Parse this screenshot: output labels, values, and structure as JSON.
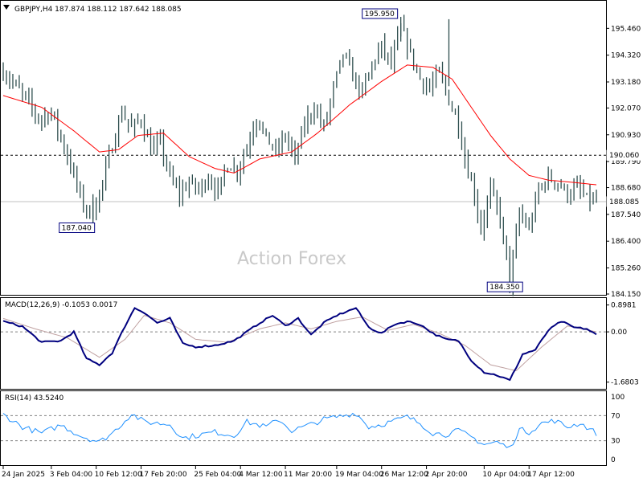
{
  "chart_data": {
    "type": "candlestick",
    "symbol_header": "GBPJPY,H4  187.874 188.112 187.642 188.085",
    "watermark": "Action Forex",
    "price": {
      "ylim": [
        184.15,
        196.6
      ],
      "yticks": [
        "195.460",
        "194.320",
        "193.180",
        "192.070",
        "190.930",
        "189.790",
        "188.680",
        "187.540",
        "186.400",
        "185.260",
        "184.150"
      ],
      "current_price_label": "188.085",
      "current_price": 188.085,
      "level_label": "190.060",
      "level": 190.06,
      "annotations": [
        {
          "text": "195.950",
          "value": 195.95,
          "position": "above-high"
        },
        {
          "text": "187.040",
          "value": 187.04,
          "position": "left-low"
        },
        {
          "text": "184.350",
          "value": 184.35,
          "position": "below-low"
        }
      ],
      "close_path": [
        [
          0,
          193.6
        ],
        [
          4,
          193.0
        ],
        [
          8,
          192.3
        ],
        [
          11,
          191.6
        ],
        [
          15,
          191.9
        ],
        [
          19,
          190.4
        ],
        [
          22,
          189.2
        ],
        [
          25,
          187.9
        ],
        [
          28,
          187.6
        ],
        [
          31,
          188.9
        ],
        [
          34,
          190.5
        ],
        [
          37,
          191.9
        ],
        [
          40,
          191.2
        ],
        [
          43,
          191.6
        ],
        [
          46,
          190.3
        ],
        [
          49,
          190.6
        ],
        [
          52,
          189.1
        ],
        [
          55,
          188.4
        ],
        [
          58,
          188.9
        ],
        [
          61,
          188.6
        ],
        [
          64,
          189.1
        ],
        [
          67,
          188.5
        ],
        [
          70,
          189.7
        ],
        [
          73,
          189.4
        ],
        [
          76,
          190.4
        ],
        [
          79,
          191.7
        ],
        [
          82,
          190.8
        ],
        [
          85,
          190.2
        ],
        [
          88,
          190.9
        ],
        [
          91,
          189.9
        ],
        [
          94,
          191.4
        ],
        [
          97,
          192.1
        ],
        [
          100,
          191.2
        ],
        [
          103,
          192.9
        ],
        [
          106,
          194.4
        ],
        [
          109,
          193.4
        ],
        [
          112,
          192.7
        ],
        [
          115,
          193.9
        ],
        [
          118,
          194.7
        ],
        [
          121,
          193.9
        ],
        [
          124,
          195.5
        ],
        [
          127,
          194.4
        ],
        [
          130,
          193.3
        ],
        [
          133,
          192.9
        ],
        [
          136,
          193.6
        ],
        [
          139,
          192.4
        ],
        [
          142,
          191.4
        ],
        [
          144,
          189.9
        ],
        [
          147,
          188.4
        ],
        [
          149,
          186.9
        ],
        [
          152,
          188.6
        ],
        [
          155,
          187.4
        ],
        [
          158,
          184.6
        ],
        [
          161,
          187.6
        ],
        [
          164,
          186.9
        ],
        [
          167,
          188.6
        ],
        [
          170,
          189.1
        ],
        [
          173,
          188.9
        ],
        [
          176,
          188.4
        ],
        [
          179,
          188.7
        ],
        [
          182,
          188.2
        ],
        [
          185,
          188.1
        ]
      ],
      "ma_path": [
        [
          0,
          192.6
        ],
        [
          12,
          192.1
        ],
        [
          22,
          191.1
        ],
        [
          30,
          190.2
        ],
        [
          36,
          190.3
        ],
        [
          42,
          190.9
        ],
        [
          50,
          191.0
        ],
        [
          58,
          190.0
        ],
        [
          66,
          189.5
        ],
        [
          72,
          189.3
        ],
        [
          80,
          189.9
        ],
        [
          90,
          190.2
        ],
        [
          98,
          191.0
        ],
        [
          108,
          192.2
        ],
        [
          118,
          193.2
        ],
        [
          126,
          193.9
        ],
        [
          134,
          193.8
        ],
        [
          140,
          193.3
        ],
        [
          146,
          192.1
        ],
        [
          152,
          190.9
        ],
        [
          158,
          189.9
        ],
        [
          164,
          189.2
        ],
        [
          170,
          189.0
        ],
        [
          178,
          188.9
        ],
        [
          185,
          188.8
        ]
      ]
    },
    "macd": {
      "label": "MACD(12,26,9) -0.1053 0.0017",
      "ylim": [
        -1.85,
        1.05
      ],
      "yticks": [
        "0.8981",
        "0.00",
        "-1.6803"
      ],
      "macd_path": [
        [
          0,
          0.35
        ],
        [
          6,
          0.18
        ],
        [
          12,
          -0.35
        ],
        [
          18,
          -0.3
        ],
        [
          22,
          0.0
        ],
        [
          26,
          -0.9
        ],
        [
          30,
          -1.1
        ],
        [
          34,
          -0.7
        ],
        [
          38,
          0.2
        ],
        [
          41,
          0.8
        ],
        [
          44,
          0.65
        ],
        [
          48,
          0.3
        ],
        [
          52,
          0.45
        ],
        [
          56,
          -0.4
        ],
        [
          60,
          -0.5
        ],
        [
          66,
          -0.45
        ],
        [
          72,
          -0.3
        ],
        [
          76,
          0.0
        ],
        [
          80,
          0.3
        ],
        [
          84,
          0.55
        ],
        [
          88,
          0.2
        ],
        [
          92,
          0.45
        ],
        [
          96,
          -0.1
        ],
        [
          100,
          0.3
        ],
        [
          104,
          0.55
        ],
        [
          110,
          0.8
        ],
        [
          114,
          0.15
        ],
        [
          118,
          -0.05
        ],
        [
          122,
          0.25
        ],
        [
          126,
          0.35
        ],
        [
          130,
          0.25
        ],
        [
          134,
          -0.05
        ],
        [
          138,
          -0.25
        ],
        [
          142,
          -0.3
        ],
        [
          146,
          -0.95
        ],
        [
          150,
          -1.35
        ],
        [
          154,
          -1.45
        ],
        [
          158,
          -1.62
        ],
        [
          162,
          -0.75
        ],
        [
          166,
          -0.6
        ],
        [
          170,
          0.05
        ],
        [
          174,
          0.35
        ],
        [
          178,
          0.15
        ],
        [
          182,
          0.1
        ],
        [
          185,
          -0.1
        ]
      ],
      "signal_path": [
        [
          0,
          0.45
        ],
        [
          10,
          0.1
        ],
        [
          20,
          -0.2
        ],
        [
          30,
          -0.85
        ],
        [
          38,
          -0.25
        ],
        [
          44,
          0.55
        ],
        [
          52,
          0.3
        ],
        [
          60,
          -0.25
        ],
        [
          70,
          -0.35
        ],
        [
          80,
          0.1
        ],
        [
          88,
          0.3
        ],
        [
          96,
          0.1
        ],
        [
          104,
          0.35
        ],
        [
          112,
          0.5
        ],
        [
          120,
          0.05
        ],
        [
          128,
          0.25
        ],
        [
          136,
          -0.05
        ],
        [
          144,
          -0.45
        ],
        [
          152,
          -1.1
        ],
        [
          160,
          -1.3
        ],
        [
          168,
          -0.5
        ],
        [
          176,
          0.2
        ],
        [
          185,
          0.0
        ]
      ]
    },
    "rsi": {
      "label": "RSI(14) 43.5240",
      "ylim": [
        0,
        100
      ],
      "yticks": [
        "100",
        "70",
        "30",
        "0"
      ],
      "levels": [
        70,
        30
      ],
      "path": [
        [
          0,
          72
        ],
        [
          6,
          52
        ],
        [
          12,
          42
        ],
        [
          18,
          55
        ],
        [
          24,
          38
        ],
        [
          30,
          28
        ],
        [
          34,
          42
        ],
        [
          38,
          62
        ],
        [
          40,
          73
        ],
        [
          44,
          60
        ],
        [
          48,
          58
        ],
        [
          52,
          56
        ],
        [
          56,
          34
        ],
        [
          62,
          40
        ],
        [
          66,
          44
        ],
        [
          72,
          38
        ],
        [
          76,
          60
        ],
        [
          82,
          52
        ],
        [
          86,
          64
        ],
        [
          90,
          46
        ],
        [
          96,
          56
        ],
        [
          100,
          64
        ],
        [
          106,
          70
        ],
        [
          110,
          74
        ],
        [
          114,
          52
        ],
        [
          118,
          56
        ],
        [
          122,
          62
        ],
        [
          126,
          68
        ],
        [
          130,
          58
        ],
        [
          134,
          42
        ],
        [
          138,
          40
        ],
        [
          142,
          46
        ],
        [
          146,
          36
        ],
        [
          150,
          24
        ],
        [
          154,
          28
        ],
        [
          158,
          18
        ],
        [
          161,
          48
        ],
        [
          164,
          44
        ],
        [
          168,
          58
        ],
        [
          172,
          62
        ],
        [
          176,
          52
        ],
        [
          180,
          58
        ],
        [
          185,
          42
        ]
      ]
    },
    "x_axis": {
      "ticks": [
        {
          "label": "24 Jan 2025",
          "bar": 0
        },
        {
          "label": "3 Feb 04:00",
          "bar": 15
        },
        {
          "label": "10 Feb 12:00",
          "bar": 29
        },
        {
          "label": "17 Feb 20:00",
          "bar": 43
        },
        {
          "label": "25 Feb 04:00",
          "bar": 60
        },
        {
          "label": "4 Mar 12:00",
          "bar": 74
        },
        {
          "label": "11 Mar 20:00",
          "bar": 88
        },
        {
          "label": "19 Mar 04:00",
          "bar": 104
        },
        {
          "label": "26 Mar 12:00",
          "bar": 118
        },
        {
          "label": "2 Apr 20:00",
          "bar": 132
        },
        {
          "label": "10 Apr 04:00",
          "bar": 150
        },
        {
          "label": "17 Apr 12:00",
          "bar": 164
        }
      ]
    },
    "colors": {
      "bars": "#2f4f4f",
      "ma": "#ff0000",
      "macd": "#00007f",
      "signal": "#bfa0a0",
      "rsi": "#1e90ff",
      "grid_dash": "#808080"
    }
  }
}
